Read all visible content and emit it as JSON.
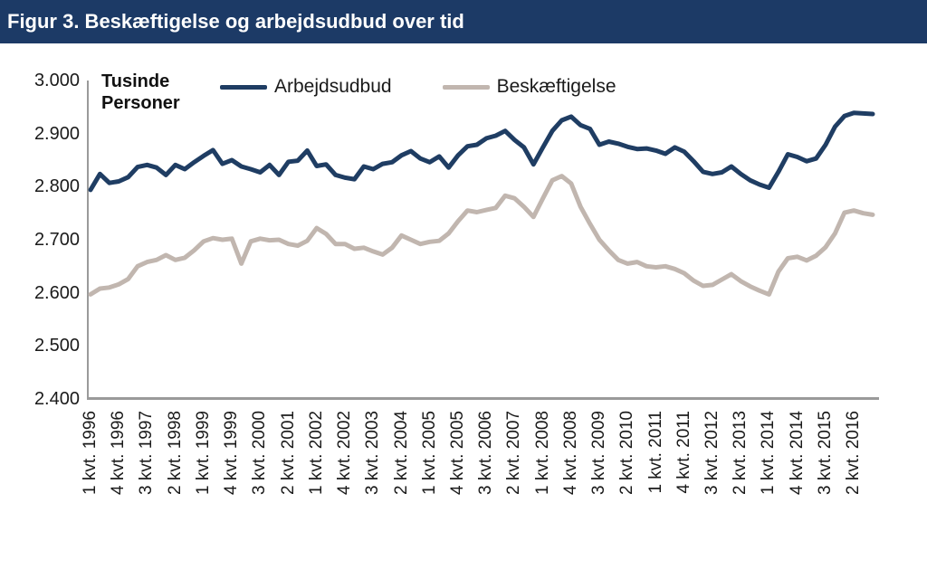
{
  "header": {
    "title": "Figur 3. Beskæftigelse og arbejdsudbud over tid"
  },
  "chart_data": {
    "type": "line",
    "title": "Figur 3. Beskæftigelse og arbejdsudbud over tid",
    "y_axis_label": "Tusinde\nPersoner",
    "ylim": [
      2400,
      3000
    ],
    "grid": false,
    "legend_position": "top-center",
    "x_unit": "quarter",
    "x_tick_every_n_quarters": 3,
    "y_ticks": [
      {
        "label": "3.000",
        "value": 3000
      },
      {
        "label": "2.900",
        "value": 2900
      },
      {
        "label": "2.800",
        "value": 2800
      },
      {
        "label": "2.700",
        "value": 2700
      },
      {
        "label": "2.600",
        "value": 2600
      },
      {
        "label": "2.500",
        "value": 2500
      },
      {
        "label": "2.400",
        "value": 2400
      }
    ],
    "x_tick_labels": [
      "1 kvt. 1996",
      "4 kvt. 1996",
      "3 kvt. 1997",
      "2 kvt. 1998",
      "1 kvt. 1999",
      "4 kvt. 1999",
      "3 kvt. 2000",
      "2 kvt. 2001",
      "1 kvt. 2002",
      "4 kvt. 2002",
      "3 kvt. 2003",
      "2 kvt. 2004",
      "1 kvt. 2005",
      "4 kvt. 2005",
      "3 kvt. 2006",
      "2 kvt. 2007",
      "1 kvt. 2008",
      "4 kvt. 2008",
      "3 kvt. 2009",
      "2 kvt. 2010",
      "1 kvt. 2011",
      "4 kvt. 2011",
      "3 kvt. 2012",
      "2 kvt. 2013",
      "1 kvt. 2014",
      "4 kvt. 2014",
      "3 kvt. 2015",
      "2 kvt. 2016"
    ],
    "series": [
      {
        "name": "Arbejdsudbud",
        "color": "#1f3d63",
        "values": [
          2794,
          2824,
          2807,
          2810,
          2818,
          2837,
          2841,
          2836,
          2822,
          2841,
          2833,
          2846,
          2858,
          2869,
          2843,
          2850,
          2838,
          2833,
          2827,
          2841,
          2822,
          2847,
          2849,
          2868,
          2839,
          2842,
          2822,
          2817,
          2814,
          2838,
          2833,
          2843,
          2846,
          2859,
          2867,
          2853,
          2846,
          2857,
          2836,
          2859,
          2876,
          2879,
          2891,
          2896,
          2905,
          2888,
          2874,
          2842,
          2874,
          2905,
          2925,
          2932,
          2916,
          2909,
          2879,
          2885,
          2881,
          2875,
          2871,
          2872,
          2868,
          2862,
          2874,
          2866,
          2848,
          2828,
          2824,
          2827,
          2838,
          2824,
          2812,
          2804,
          2798,
          2828,
          2861,
          2856,
          2848,
          2853,
          2879,
          2913,
          2933,
          2939,
          2938,
          2937
        ]
      },
      {
        "name": "Beskæftigelse",
        "color": "#c1b6af",
        "values": [
          2597,
          2608,
          2610,
          2616,
          2626,
          2650,
          2658,
          2662,
          2671,
          2662,
          2666,
          2680,
          2697,
          2703,
          2700,
          2702,
          2655,
          2697,
          2702,
          2699,
          2700,
          2692,
          2689,
          2698,
          2722,
          2711,
          2692,
          2692,
          2683,
          2685,
          2678,
          2672,
          2685,
          2708,
          2700,
          2692,
          2696,
          2698,
          2712,
          2735,
          2755,
          2752,
          2756,
          2760,
          2783,
          2778,
          2762,
          2743,
          2778,
          2812,
          2820,
          2806,
          2762,
          2730,
          2700,
          2680,
          2662,
          2655,
          2658,
          2650,
          2648,
          2650,
          2645,
          2637,
          2623,
          2613,
          2615,
          2625,
          2635,
          2622,
          2612,
          2604,
          2597,
          2640,
          2665,
          2668,
          2661,
          2670,
          2686,
          2712,
          2751,
          2755,
          2750,
          2747
        ]
      }
    ]
  },
  "colors": {
    "title_bar_bg": "#1c3a66",
    "title_text": "#ffffff",
    "axis": "#9a9a9a"
  }
}
